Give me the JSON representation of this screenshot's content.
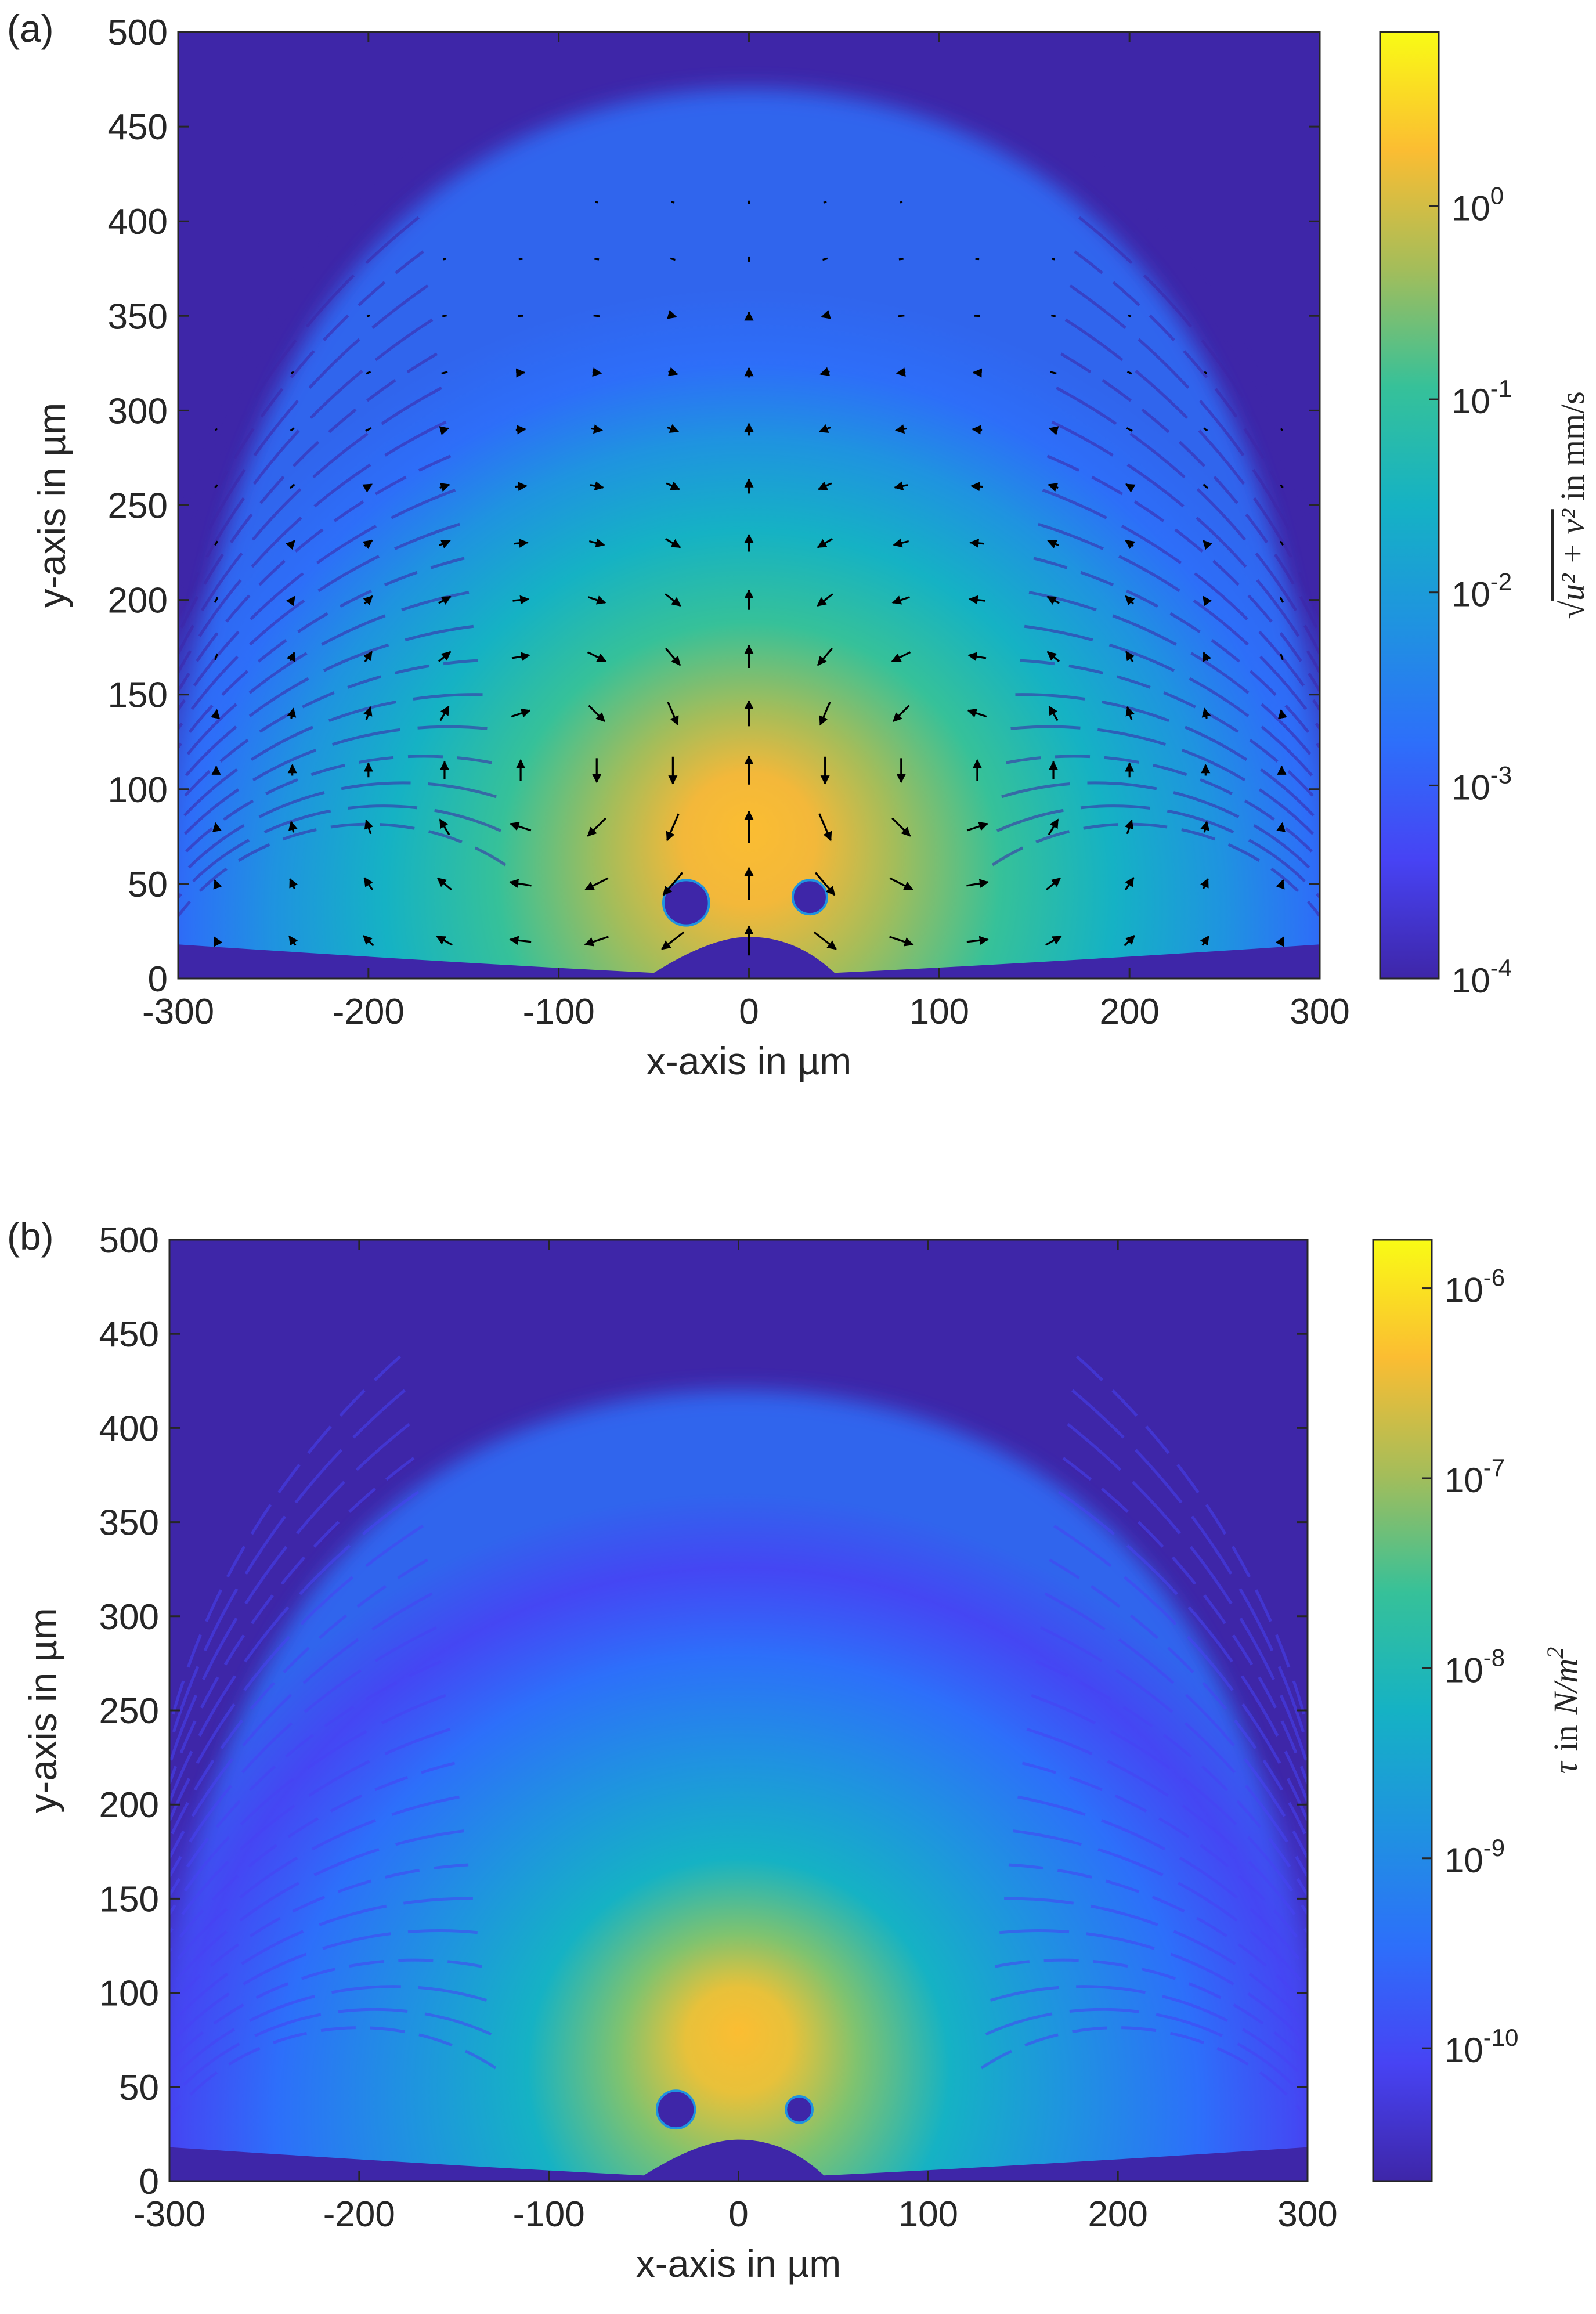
{
  "chart_data": [
    {
      "type": "heatmap",
      "panel_label": "(a)",
      "xlabel": "x-axis in µm",
      "ylabel": "y-axis in µm",
      "xlim": [
        -300,
        300
      ],
      "ylim": [
        0,
        500
      ],
      "xticks": [
        -300,
        -200,
        -100,
        0,
        100,
        200,
        300
      ],
      "yticks": [
        0,
        50,
        100,
        150,
        200,
        250,
        300,
        350,
        400,
        450,
        500
      ],
      "colorbar": {
        "scale": "log",
        "label": "√(ū² + v̄²) in mm/s",
        "label_main": "√",
        "label_overbar": "u² + v²",
        "label_unit": " in mm/s",
        "lim": [
          0.0001,
          8
        ],
        "ticks": [
          {
            "base": "10",
            "exp": "-4",
            "value": 0.0001
          },
          {
            "base": "10",
            "exp": "-3",
            "value": 0.001
          },
          {
            "base": "10",
            "exp": "-2",
            "value": 0.01
          },
          {
            "base": "10",
            "exp": "-1",
            "value": 0.1
          },
          {
            "base": "10",
            "exp": "0",
            "value": 1
          }
        ]
      },
      "features": {
        "background_level": 0.0001,
        "center_level": 1.0,
        "obstacles": [
          {
            "x": -33,
            "y": 40,
            "r": 12
          },
          {
            "x": 32,
            "y": 43,
            "r": 9
          }
        ],
        "floor_bump": {
          "x_from": -50,
          "x_to": 45,
          "peak_y": 22
        },
        "quiver_field": "two counter-rotating vortices centered near x = ±110 µm, y ≈ 100 µm, jet upward along x = 0"
      }
    },
    {
      "type": "heatmap",
      "panel_label": "(b)",
      "xlabel": "x-axis in µm",
      "ylabel": "y-axis in µm",
      "xlim": [
        -300,
        300
      ],
      "ylim": [
        0,
        500
      ],
      "xticks": [
        -300,
        -200,
        -100,
        0,
        100,
        200,
        300
      ],
      "yticks": [
        0,
        50,
        100,
        150,
        200,
        250,
        300,
        350,
        400,
        450,
        500
      ],
      "colorbar": {
        "scale": "log",
        "label": "τ in N/m²",
        "label_main": "τ",
        "label_unit_word": "in",
        "label_unit": "N/m",
        "label_unit_exp": "2",
        "lim": [
          2e-11,
          1.8e-06
        ],
        "ticks": [
          {
            "base": "10",
            "exp": "-10",
            "value": 1e-10
          },
          {
            "base": "10",
            "exp": "-9",
            "value": 1e-09
          },
          {
            "base": "10",
            "exp": "-8",
            "value": 1e-08
          },
          {
            "base": "10",
            "exp": "-7",
            "value": 1e-07
          },
          {
            "base": "10",
            "exp": "-6",
            "value": 1e-06
          }
        ]
      },
      "features": {
        "background_level": 2e-11,
        "center_level": 1e-06,
        "obstacles": [
          {
            "x": -33,
            "y": 38,
            "r": 10
          },
          {
            "x": 32,
            "y": 38,
            "r": 7
          }
        ],
        "floor_bump": {
          "x_from": -50,
          "x_to": 45,
          "peak_y": 22
        }
      }
    }
  ]
}
